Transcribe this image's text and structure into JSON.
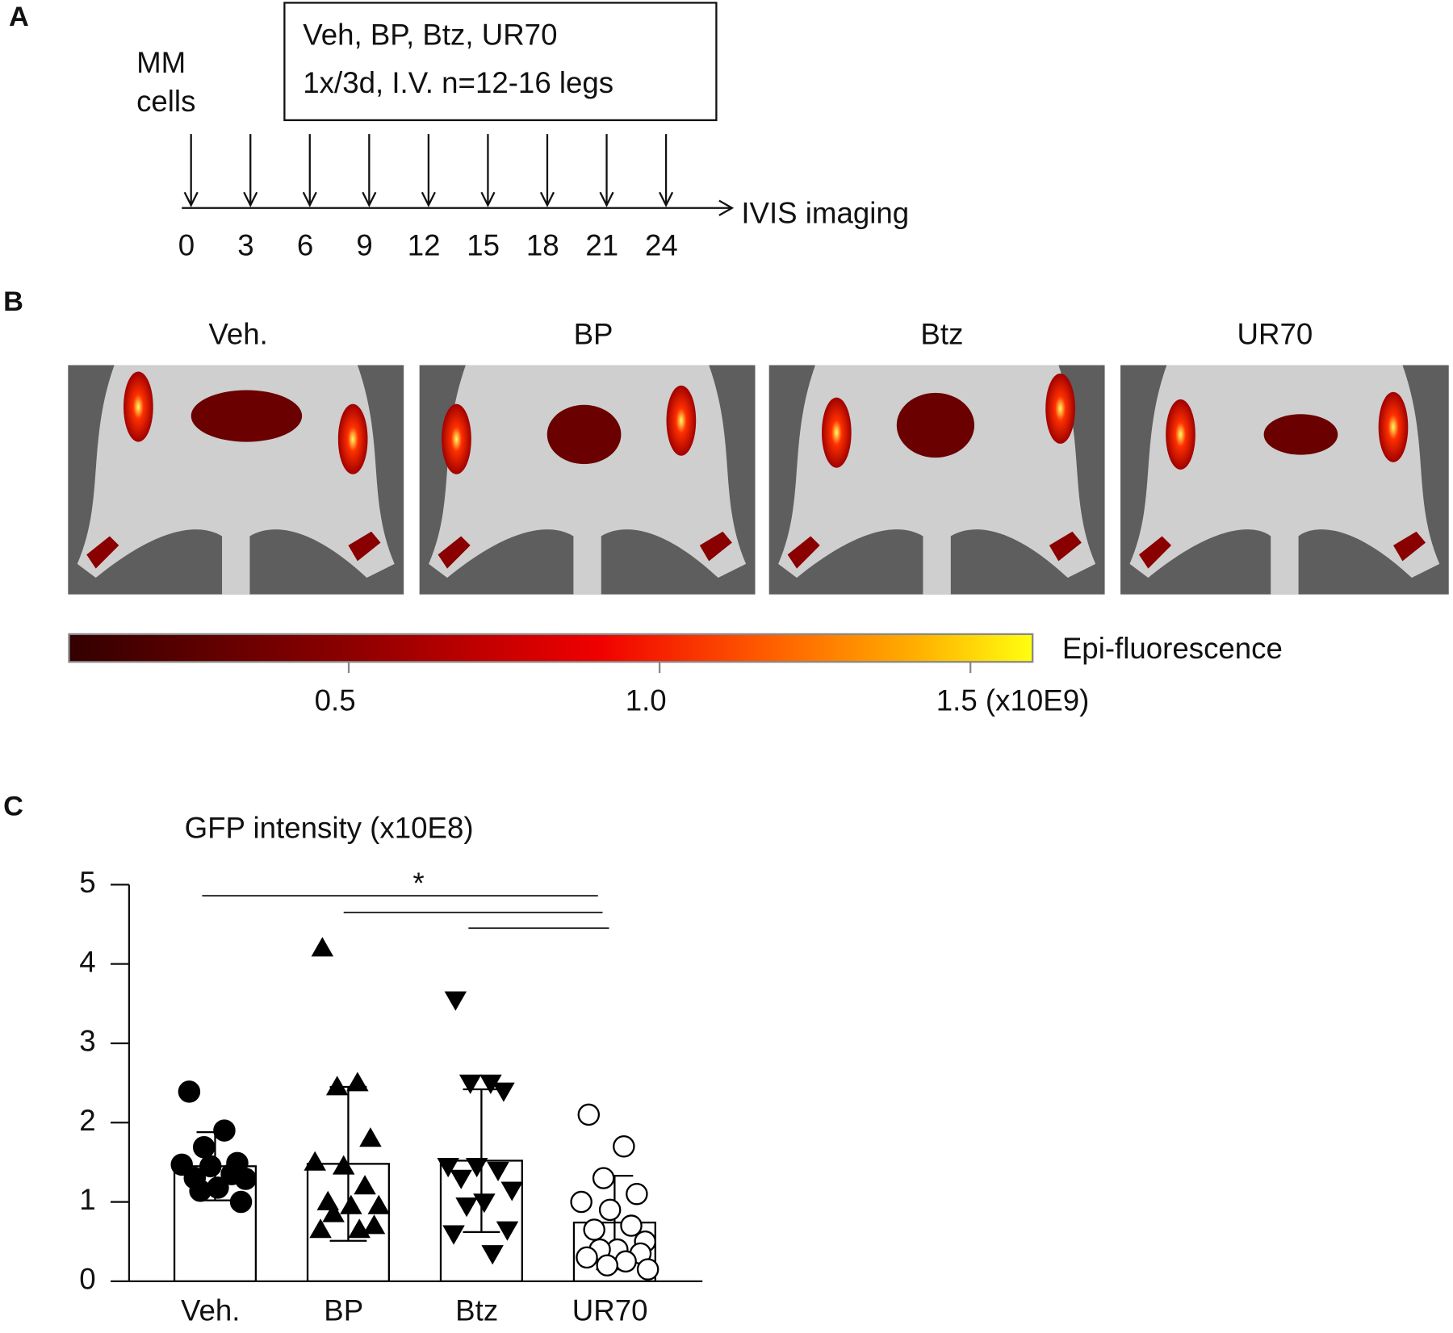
{
  "panels": {
    "a": "A",
    "b": "B",
    "c": "C"
  },
  "timeline": {
    "injection": [
      "MM",
      "cells"
    ],
    "treatment": [
      "Veh, BP, Btz, UR70",
      "1x/3d, I.V. n=12-16 legs"
    ],
    "end_label": "IVIS imaging",
    "days": [
      0,
      3,
      6,
      9,
      12,
      15,
      18,
      21,
      24
    ]
  },
  "images": {
    "labels": [
      "Veh.",
      "BP",
      "Btz",
      "UR70"
    ]
  },
  "colorbar": {
    "label": "Epi-fluorescence",
    "range": [
      0.05,
      1.6
    ],
    "ticks": [
      0.5,
      {
        "value": 1,
        "label": "1.0"
      },
      {
        "value": 1.5,
        "label": "1.5 (x10E9)"
      }
    ]
  },
  "chart_data": {
    "type": "bar",
    "ylabel": "GFP intensity (x10E8)",
    "categories": [
      "Veh.",
      "BP",
      "Btz",
      "UR70"
    ],
    "values": [
      1.45,
      1.48,
      1.52,
      0.74
    ],
    "errors": [
      0.43,
      0.97,
      0.9,
      0.59
    ],
    "points": [
      [
        2.39,
        1.9,
        1.69,
        1.49,
        1.47,
        1.45,
        1.35,
        1.3,
        1.29,
        1.18,
        1.14,
        1.0
      ],
      [
        4.2,
        2.5,
        2.45,
        1.8,
        1.5,
        1.45,
        1.2,
        1.0,
        0.95,
        0.95,
        0.85,
        0.7,
        0.65,
        0.65
      ],
      [
        3.55,
        2.5,
        2.5,
        2.4,
        1.45,
        1.45,
        1.4,
        1.3,
        1.15,
        1.0,
        0.95,
        0.65,
        0.6,
        0.35
      ],
      [
        2.1,
        1.7,
        1.3,
        1.1,
        1.0,
        0.9,
        0.7,
        0.65,
        0.5,
        0.4,
        0.4,
        0.35,
        0.3,
        0.25,
        0.2,
        0.15
      ]
    ],
    "markers": [
      "circle",
      "triangle-up",
      "triangle-down",
      "circle-open"
    ],
    "color": "#000000",
    "annotation": "*",
    "ylim": [
      0,
      5
    ],
    "yticks": [
      0,
      1,
      2,
      3,
      4,
      5
    ]
  }
}
